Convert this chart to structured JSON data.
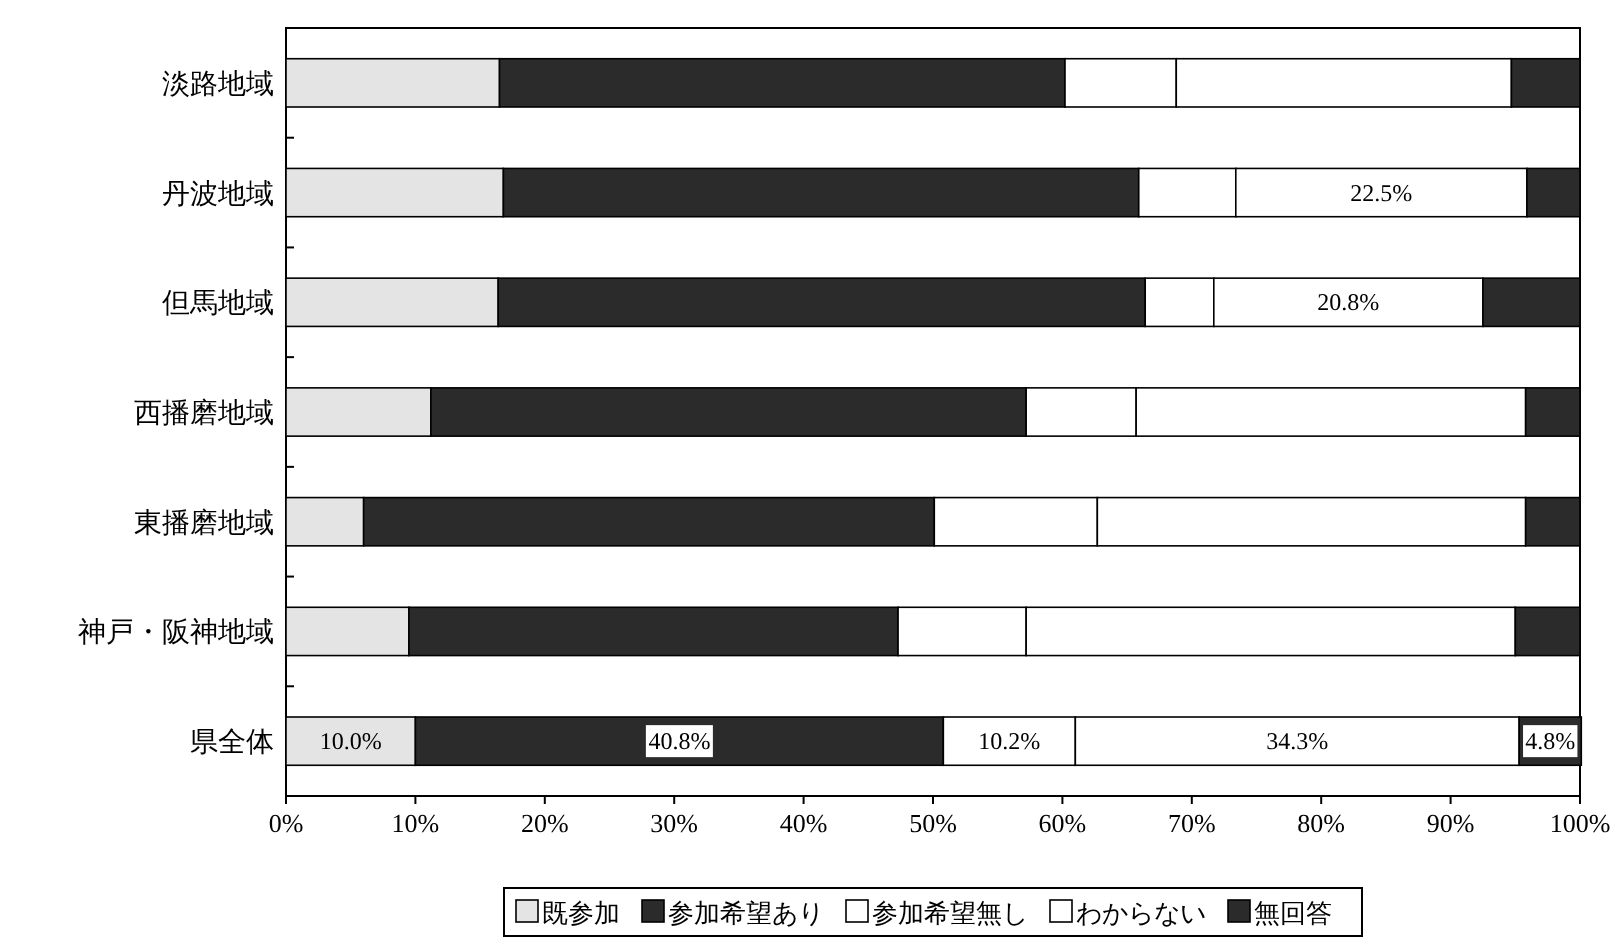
{
  "chart_data": {
    "type": "bar",
    "orientation": "horizontal",
    "stacked": true,
    "categories": [
      "淡路地域",
      "丹波地域",
      "但馬地域",
      "西播磨地域",
      "東播磨地域",
      "神戸・阪神地域",
      "県全体"
    ],
    "series": [
      {
        "name": "既参加",
        "color": "#e4e4e4",
        "values": [
          16.5,
          16.8,
          16.4,
          11.2,
          6.0,
          9.5,
          10.0
        ],
        "value_labels": [
          null,
          null,
          null,
          null,
          null,
          null,
          "10.0%"
        ]
      },
      {
        "name": "参加希望あり",
        "color": "#2b2b2b",
        "values": [
          43.7,
          49.1,
          50.0,
          46.0,
          44.1,
          37.8,
          40.8
        ],
        "value_labels": [
          null,
          null,
          null,
          null,
          null,
          null,
          "40.8%"
        ]
      },
      {
        "name": "参加希望無し",
        "color": "#ffffff",
        "values": [
          8.6,
          7.5,
          5.3,
          8.5,
          12.6,
          9.9,
          10.2
        ],
        "value_labels": [
          null,
          null,
          null,
          null,
          null,
          null,
          "10.2%"
        ]
      },
      {
        "name": "わからない",
        "color": "#ffffff",
        "values": [
          25.9,
          22.5,
          20.8,
          30.1,
          33.1,
          37.8,
          34.3
        ],
        "value_labels": [
          null,
          "22.5%",
          "20.8%",
          null,
          null,
          null,
          "34.3%"
        ]
      },
      {
        "name": "無回答",
        "color": "#2b2b2b",
        "values": [
          5.3,
          4.1,
          7.5,
          4.2,
          4.2,
          5.0,
          4.8
        ],
        "value_labels": [
          null,
          null,
          null,
          null,
          null,
          null,
          "4.8%"
        ]
      }
    ],
    "xlim": [
      0,
      100
    ],
    "xticks": [
      {
        "value": 0,
        "label": "0%"
      },
      {
        "value": 10,
        "label": "10%"
      },
      {
        "value": 20,
        "label": "20%"
      },
      {
        "value": 30,
        "label": "30%"
      },
      {
        "value": 40,
        "label": "40%"
      },
      {
        "value": 50,
        "label": "50%"
      },
      {
        "value": 60,
        "label": "60%"
      },
      {
        "value": 70,
        "label": "70%"
      },
      {
        "value": 80,
        "label": "80%"
      },
      {
        "value": 90,
        "label": "90%"
      },
      {
        "value": 100,
        "label": "100%"
      }
    ],
    "grid": false,
    "legend": "bottom"
  }
}
